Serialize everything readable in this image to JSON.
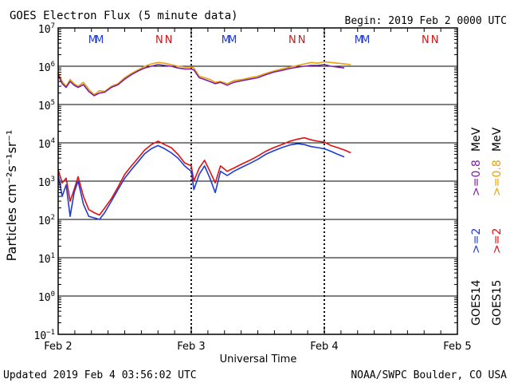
{
  "header": {
    "title": "GOES Electron Flux (5 minute data)",
    "begin": "Begin: 2019 Feb 2 0000 UTC"
  },
  "footer": {
    "updated": "Updated 2019 Feb  4 03:56:02 UTC",
    "source": "NOAA/SWPC Boulder, CO USA"
  },
  "colors": {
    "goes14_2mev": "#1f3bd6",
    "goes15_2mev": "#e01010",
    "goes14_08mev": "#7a1fa0",
    "goes15_08mev": "#e6a010",
    "m_marker": "#1f3bd6",
    "n_marker": "#c81818"
  },
  "chart_data": {
    "type": "line",
    "title": "GOES Electron Flux (5 minute data)",
    "xlabel": "Universal Time",
    "ylabel": "Particles cm⁻²s⁻¹sr⁻¹",
    "y_scale": "log",
    "ylim": [
      0.1,
      10000000
    ],
    "xlim_days": [
      0,
      3
    ],
    "x_ticks": [
      "Feb 2",
      "Feb 3",
      "Feb 4",
      "Feb 5"
    ],
    "y_tick_exponents": [
      -1,
      0,
      1,
      2,
      3,
      4,
      5,
      6,
      7
    ],
    "threshold_line": 1000,
    "markers": [
      {
        "label": "M",
        "day": 0.26
      },
      {
        "label": "M",
        "day": 0.31
      },
      {
        "label": "N",
        "day": 0.76
      },
      {
        "label": "N",
        "day": 0.83
      },
      {
        "label": "M",
        "day": 1.26
      },
      {
        "label": "M",
        "day": 1.31
      },
      {
        "label": "N",
        "day": 1.76
      },
      {
        "label": "N",
        "day": 1.83
      },
      {
        "label": "M",
        "day": 2.26
      },
      {
        "label": "M",
        "day": 2.31
      },
      {
        "label": "N",
        "day": 2.76
      },
      {
        "label": "N",
        "day": 2.83
      }
    ],
    "legend": {
      "goes14": "GOES14",
      "goes15": "GOES15",
      "ge2": ">=2",
      "ge08": ">=0.8",
      "mev": "MeV"
    },
    "series": [
      {
        "name": "GOES15 >=0.8 MeV",
        "key": "goes15_08mev",
        "x": [
          0.0,
          0.03,
          0.06,
          0.09,
          0.12,
          0.15,
          0.19,
          0.23,
          0.27,
          0.31,
          0.35,
          0.4,
          0.45,
          0.5,
          0.55,
          0.6,
          0.65,
          0.7,
          0.75,
          0.8,
          0.85,
          0.9,
          0.95,
          1.0,
          1.02,
          1.06,
          1.1,
          1.14,
          1.18,
          1.22,
          1.27,
          1.32,
          1.38,
          1.44,
          1.5,
          1.56,
          1.62,
          1.68,
          1.74,
          1.8,
          1.85,
          1.9,
          1.95,
          2.0,
          2.05,
          2.1,
          2.15,
          2.2
        ],
        "y": [
          700000,
          400000,
          300000,
          450000,
          350000,
          300000,
          380000,
          250000,
          180000,
          230000,
          220000,
          300000,
          350000,
          500000,
          650000,
          800000,
          1000000,
          1150000,
          1250000,
          1200000,
          1100000,
          1000000,
          950000,
          950000,
          900000,
          550000,
          500000,
          450000,
          380000,
          400000,
          350000,
          420000,
          450000,
          500000,
          550000,
          650000,
          750000,
          850000,
          950000,
          1050000,
          1150000,
          1250000,
          1200000,
          1300000,
          1250000,
          1200000,
          1150000,
          1100000
        ]
      },
      {
        "name": "GOES14 >=0.8 MeV",
        "key": "goes14_08mev",
        "x": [
          0.0,
          0.03,
          0.06,
          0.09,
          0.12,
          0.15,
          0.19,
          0.23,
          0.27,
          0.31,
          0.35,
          0.4,
          0.45,
          0.5,
          0.55,
          0.6,
          0.65,
          0.7,
          0.75,
          0.8,
          0.85,
          0.9,
          0.95,
          1.0,
          1.02,
          1.06,
          1.1,
          1.14,
          1.18,
          1.22,
          1.27,
          1.32,
          1.38,
          1.44,
          1.5,
          1.56,
          1.62,
          1.68,
          1.74,
          1.8,
          1.85,
          1.9,
          1.95,
          2.0,
          2.05,
          2.1,
          2.15
        ],
        "y": [
          600000,
          350000,
          280000,
          400000,
          320000,
          280000,
          330000,
          220000,
          170000,
          200000,
          210000,
          280000,
          330000,
          460000,
          600000,
          750000,
          900000,
          1000000,
          1100000,
          1050000,
          1000000,
          900000,
          850000,
          850000,
          800000,
          500000,
          450000,
          400000,
          350000,
          380000,
          320000,
          380000,
          420000,
          460000,
          500000,
          600000,
          700000,
          780000,
          870000,
          950000,
          1000000,
          1050000,
          1050000,
          1100000,
          1000000,
          950000,
          900000
        ]
      },
      {
        "name": "GOES15 >=2 MeV",
        "key": "goes15_2mev",
        "x": [
          0.0,
          0.03,
          0.06,
          0.09,
          0.12,
          0.15,
          0.19,
          0.23,
          0.27,
          0.31,
          0.35,
          0.4,
          0.45,
          0.5,
          0.55,
          0.6,
          0.65,
          0.7,
          0.75,
          0.8,
          0.85,
          0.9,
          0.95,
          1.0,
          1.02,
          1.06,
          1.1,
          1.14,
          1.18,
          1.22,
          1.27,
          1.32,
          1.38,
          1.44,
          1.5,
          1.56,
          1.62,
          1.68,
          1.74,
          1.8,
          1.85,
          1.9,
          1.95,
          2.0,
          2.05,
          2.1,
          2.15,
          2.2
        ],
        "y": [
          2000,
          900,
          1200,
          300,
          600,
          1300,
          400,
          180,
          150,
          130,
          200,
          350,
          700,
          1500,
          2500,
          4000,
          6500,
          9000,
          11000,
          9000,
          7500,
          5000,
          3000,
          2500,
          1000,
          2200,
          3500,
          1800,
          900,
          2500,
          1800,
          2200,
          2800,
          3500,
          4500,
          6000,
          7500,
          9000,
          11000,
          12500,
          13500,
          12000,
          11000,
          10500,
          8500,
          7500,
          6500,
          5500
        ]
      },
      {
        "name": "GOES14 >=2 MeV",
        "key": "goes14_2mev",
        "x": [
          0.0,
          0.03,
          0.06,
          0.09,
          0.12,
          0.15,
          0.19,
          0.23,
          0.27,
          0.31,
          0.35,
          0.4,
          0.45,
          0.5,
          0.55,
          0.6,
          0.65,
          0.7,
          0.75,
          0.8,
          0.85,
          0.9,
          0.95,
          1.0,
          1.02,
          1.06,
          1.1,
          1.14,
          1.18,
          1.22,
          1.27,
          1.32,
          1.38,
          1.44,
          1.5,
          1.56,
          1.62,
          1.68,
          1.74,
          1.8,
          1.85,
          1.9,
          1.95,
          2.0,
          2.05,
          2.1,
          2.15
        ],
        "y": [
          1500,
          400,
          800,
          120,
          500,
          1000,
          250,
          120,
          110,
          100,
          150,
          300,
          600,
          1200,
          2000,
          3200,
          5200,
          7000,
          8500,
          7000,
          5500,
          4000,
          2500,
          1800,
          600,
          1500,
          2500,
          1200,
          500,
          1800,
          1400,
          1800,
          2300,
          2900,
          3700,
          5000,
          6200,
          7500,
          8800,
          9500,
          9000,
          8000,
          7500,
          7000,
          6000,
          5000,
          4300
        ]
      }
    ]
  }
}
